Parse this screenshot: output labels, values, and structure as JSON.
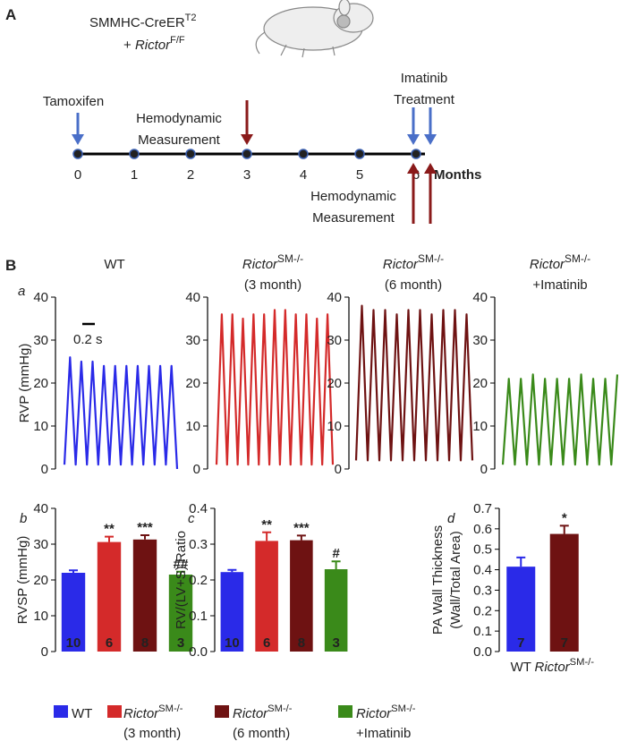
{
  "panel_a": {
    "label": "A",
    "mouse_line1": "SMMHC-CreER",
    "mouse_sup1": "T2",
    "mouse_plus": "+ ",
    "mouse_gene": "Rictor",
    "mouse_sup2": "F/F",
    "timeline": {
      "ticks": [
        0,
        1,
        2,
        3,
        4,
        5,
        6
      ],
      "unit": "Months"
    },
    "tamoxifen": "Tamoxifen",
    "hemo_top": [
      "Hemodynamic",
      "Measurement"
    ],
    "imatinib": [
      "Imatinib",
      "Treatment"
    ],
    "hemo_bottom": [
      "Hemodynamic",
      "Measurement"
    ]
  },
  "panel_b_label": "B",
  "legend": [
    {
      "name": "WT",
      "color": "#2a2ae8"
    },
    {
      "name": "Rictor",
      "superscript": "SM-/-",
      "note": "(3 month)",
      "color": "#d42a2a"
    },
    {
      "name": "Rictor",
      "superscript": "SM-/-",
      "note": "(6 month)",
      "color": "#6e1212"
    },
    {
      "name": "Rictor",
      "superscript": "SM-/-",
      "note": "+Imatinib",
      "color": "#3a8a1a"
    }
  ],
  "chart_data": [
    {
      "type": "line",
      "panel": "a",
      "ylabel": "RVP (mmHg)",
      "scale_bar": "0.2 s",
      "title": {
        "name": "WT"
      },
      "color": "#2a2ae8",
      "ylim": [
        0,
        40
      ],
      "yticks": [
        0,
        10,
        20,
        30,
        40
      ],
      "values": [
        1,
        26,
        1,
        25,
        1,
        25,
        1,
        24,
        1,
        24,
        1,
        24,
        1,
        24,
        1,
        24,
        1,
        24,
        1,
        24,
        0
      ]
    },
    {
      "type": "line",
      "title": {
        "name": "Rictor",
        "superscript": "SM-/-",
        "note": "(3 month)"
      },
      "color": "#d42a2a",
      "ylim": [
        0,
        40
      ],
      "yticks": [
        0,
        10,
        20,
        30,
        40
      ],
      "values": [
        1,
        36,
        1,
        36,
        1,
        35,
        1,
        36,
        1,
        36,
        1,
        37,
        1,
        37,
        1,
        36,
        1,
        36,
        1,
        35,
        1,
        36,
        1
      ]
    },
    {
      "type": "line",
      "title": {
        "name": "Rictor",
        "superscript": "SM-/-",
        "note": "(6 month)"
      },
      "color": "#6e1212",
      "ylim": [
        0,
        40
      ],
      "yticks": [
        0,
        10,
        20,
        30,
        40
      ],
      "values": [
        2,
        38,
        2,
        37,
        2,
        37,
        2,
        36,
        2,
        37,
        2,
        37,
        2,
        36,
        2,
        37,
        2,
        37,
        2,
        36,
        2
      ]
    },
    {
      "type": "line",
      "title": {
        "name": "Rictor",
        "superscript": "SM-/-",
        "note": "+Imatinib"
      },
      "color": "#3a8a1a",
      "ylim": [
        0,
        40
      ],
      "yticks": [
        0,
        10,
        20,
        30,
        40
      ],
      "values": [
        1,
        21,
        1,
        21,
        1,
        22,
        1,
        21,
        1,
        21,
        1,
        21,
        1,
        22,
        1,
        21,
        1,
        21,
        1,
        22
      ]
    },
    {
      "type": "bar",
      "panel": "b",
      "ylabel": [
        "RVSP (mmHg)"
      ],
      "ylim": [
        0,
        40
      ],
      "yticks": [
        0,
        10,
        20,
        30,
        40
      ],
      "values": [
        22.0,
        30.6,
        31.3,
        21.5
      ],
      "errors": [
        0.7,
        1.5,
        1.2,
        0.8
      ],
      "colors": [
        "#2a2ae8",
        "#d42a2a",
        "#6e1212",
        "#3a8a1a"
      ],
      "n": [
        10,
        6,
        8,
        3
      ],
      "annotations": [
        null,
        "**",
        "***",
        "##"
      ]
    },
    {
      "type": "bar",
      "panel": "c",
      "ylabel": [
        "RV/(LV+S) Ratio"
      ],
      "ylim": [
        0,
        0.4
      ],
      "yticks": [
        {
          "value": 0,
          "label": "0.0"
        },
        0.1,
        0.2,
        0.3,
        0.4
      ],
      "values": [
        0.222,
        0.309,
        0.311,
        0.23
      ],
      "errors": [
        0.006,
        0.024,
        0.013,
        0.022
      ],
      "colors": [
        "#2a2ae8",
        "#d42a2a",
        "#6e1212",
        "#3a8a1a"
      ],
      "n": [
        10,
        6,
        8,
        3
      ],
      "annotations": [
        null,
        "**",
        "***",
        "#"
      ]
    },
    {
      "type": "bar",
      "panel": "d",
      "ylabel": [
        "PA Wall Thickness",
        "(Wall/Total Area)"
      ],
      "ylim": [
        0,
        0.7
      ],
      "yticks": [
        {
          "value": 0,
          "label": "0.0"
        },
        0.1,
        0.2,
        0.3,
        0.4,
        0.5,
        0.6,
        0.7
      ],
      "categories": [
        {
          "name": "WT"
        },
        {
          "name": "Rictor",
          "superscript": "SM-/-"
        }
      ],
      "values": [
        0.415,
        0.575
      ],
      "errors": [
        0.045,
        0.04
      ],
      "colors": [
        "#2a2ae8",
        "#6e1212"
      ],
      "n": [
        7,
        7
      ],
      "annotations": [
        null,
        "*"
      ]
    }
  ]
}
